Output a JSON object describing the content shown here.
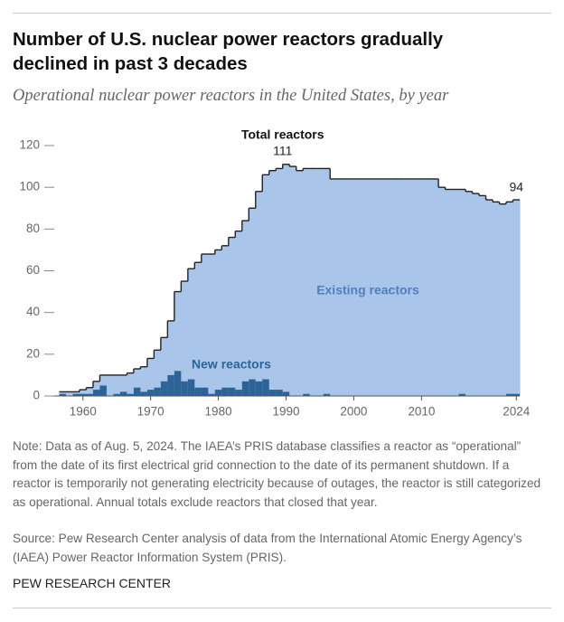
{
  "chart_data": {
    "type": "step",
    "title": "Number of U.S. nuclear power reactors gradually declined in past 3 decades",
    "subtitle": "Operational nuclear power reactors in the United States, by year",
    "x": [
      1957,
      1958,
      1959,
      1960,
      1961,
      1962,
      1963,
      1964,
      1965,
      1966,
      1967,
      1968,
      1969,
      1970,
      1971,
      1972,
      1973,
      1974,
      1975,
      1976,
      1977,
      1978,
      1979,
      1980,
      1981,
      1982,
      1983,
      1984,
      1985,
      1986,
      1987,
      1988,
      1989,
      1990,
      1991,
      1992,
      1993,
      1994,
      1995,
      1996,
      1997,
      1998,
      1999,
      2000,
      2001,
      2002,
      2003,
      2004,
      2005,
      2006,
      2007,
      2008,
      2009,
      2010,
      2011,
      2012,
      2013,
      2014,
      2015,
      2016,
      2017,
      2018,
      2019,
      2020,
      2021,
      2022,
      2023,
      2024
    ],
    "series": [
      {
        "name": "Total reactors",
        "area_label": "Existing reactors",
        "color": "#a9c6ea",
        "line_color": "#222222",
        "values": [
          2,
          2,
          2,
          3,
          4,
          7,
          10,
          10,
          10,
          10,
          11,
          13,
          14,
          18,
          22,
          28,
          36,
          50,
          55,
          61,
          64,
          68,
          68,
          70,
          72,
          76,
          79,
          84,
          90,
          98,
          106,
          108,
          109,
          111,
          110,
          108,
          109,
          109,
          109,
          109,
          104,
          104,
          104,
          104,
          104,
          104,
          104,
          104,
          104,
          104,
          104,
          104,
          104,
          104,
          104,
          104,
          100,
          99,
          99,
          99,
          98,
          97,
          96,
          94,
          93,
          92,
          93,
          94
        ]
      },
      {
        "name": "New reactors",
        "color": "#2d6497",
        "values": [
          1,
          0,
          1,
          1,
          1,
          3,
          5,
          0,
          1,
          2,
          1,
          4,
          2,
          3,
          4,
          7,
          10,
          12,
          7,
          8,
          4,
          4,
          1,
          3,
          4,
          4,
          3,
          7,
          8,
          7,
          8,
          3,
          3,
          2,
          0,
          0,
          1,
          0,
          0,
          1,
          0,
          0,
          0,
          0,
          0,
          0,
          0,
          0,
          0,
          0,
          0,
          0,
          0,
          0,
          0,
          0,
          0,
          0,
          0,
          1,
          0,
          0,
          0,
          0,
          0,
          0,
          1,
          1
        ]
      }
    ],
    "xlim": [
      1955.6,
      2025
    ],
    "xticks": [
      1960,
      1970,
      1980,
      1990,
      2000,
      2010,
      2024
    ],
    "ylim": [
      0,
      120
    ],
    "yticks": [
      0,
      20,
      40,
      60,
      80,
      100,
      120
    ],
    "note": "Note: Data as of Aug. 5, 2024. The IAEA’s PRIS database classifies a reactor as “operational” from the date of its first electrical grid connection to the date of its permanent shutdown. If a reactor is temporarily not generating electricity because of outages, the reactor is still categorized as operational. Annual totals exclude reactors that closed that year.",
    "source": "Source: Pew Research Center analysis of data from the International Atomic Energy Agency’s (IAEA) Power Reactor Information System (PRIS).",
    "credit": "PEW RESEARCH CENTER"
  }
}
